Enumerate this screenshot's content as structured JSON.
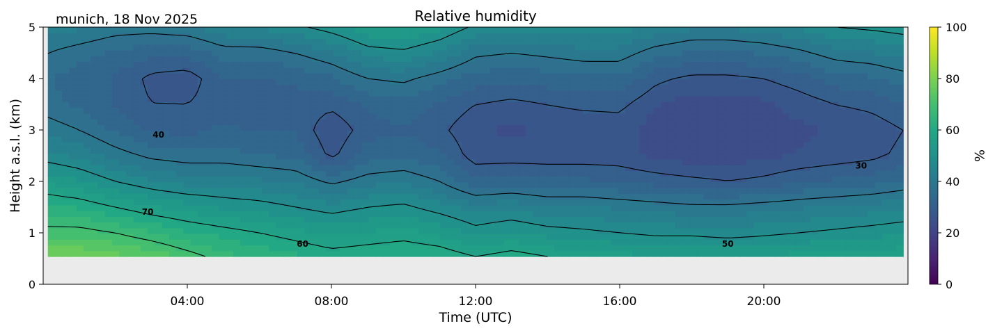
{
  "chart_data": {
    "type": "heatmap",
    "title": "Relative humidity",
    "subtitle": "munich, 18 Nov 2025",
    "xlabel": "Time (UTC)",
    "ylabel": "Height a.s.l. (km)",
    "xlim": [
      0,
      24
    ],
    "ylim": [
      0,
      5
    ],
    "x_ticks": [
      4,
      8,
      12,
      16,
      20
    ],
    "x_tick_labels": [
      "04:00",
      "08:00",
      "12:00",
      "16:00",
      "20:00"
    ],
    "y_ticks": [
      0,
      1,
      2,
      3,
      4,
      5
    ],
    "y_tick_labels": [
      "0",
      "1",
      "2",
      "3",
      "4",
      "5"
    ],
    "colorbar": {
      "label": "%",
      "range": [
        0,
        100
      ],
      "ticks": [
        0,
        20,
        40,
        60,
        80,
        100
      ],
      "tick_labels": [
        "0",
        "20",
        "40",
        "60",
        "80",
        "100"
      ],
      "colormap": "viridis"
    },
    "data_time_range": [
      0.13,
      23.87
    ],
    "data_height_range": [
      0.54,
      5
    ],
    "times": [
      0.13,
      1,
      2,
      3,
      4,
      5,
      6,
      7,
      8,
      9,
      10,
      11,
      12,
      13,
      14,
      15,
      16,
      17,
      18,
      19,
      20,
      21,
      22,
      23,
      23.87
    ],
    "heights": [
      0.54,
      1,
      1.5,
      2,
      2.5,
      3,
      3.5,
      4,
      4.5,
      5
    ],
    "values": [
      [
        80,
        72,
        64,
        56,
        48,
        42,
        38,
        37,
        40,
        45
      ],
      [
        80,
        72,
        63,
        54,
        46,
        40,
        36,
        35,
        38,
        44
      ],
      [
        78,
        70,
        60,
        50,
        42,
        36,
        33,
        33,
        36,
        42
      ],
      [
        76,
        67,
        57,
        47,
        39,
        33,
        30,
        29,
        34,
        42
      ],
      [
        72,
        64,
        55,
        45,
        38,
        32,
        30,
        28,
        34,
        43
      ],
      [
        68,
        62,
        53,
        45,
        38,
        34,
        32,
        33,
        38,
        46
      ],
      [
        66,
        60,
        52,
        44,
        37,
        33,
        32,
        33,
        38,
        47
      ],
      [
        64,
        58,
        50,
        43,
        36,
        33,
        32,
        34,
        40,
        49
      ],
      [
        62,
        56,
        48,
        39,
        29,
        27,
        31,
        36,
        43,
        52
      ],
      [
        63,
        57,
        50,
        42,
        35,
        32,
        34,
        40,
        48,
        56
      ],
      [
        64,
        58,
        51,
        43,
        36,
        33,
        35,
        41,
        49,
        57
      ],
      [
        63,
        56,
        48,
        40,
        34,
        31,
        33,
        38,
        46,
        54
      ],
      [
        60,
        52,
        45,
        34,
        28,
        27,
        30,
        35,
        41,
        49
      ],
      [
        62,
        54,
        46,
        35,
        28,
        26,
        29,
        34,
        40,
        48
      ],
      [
        60,
        52,
        44,
        34,
        28,
        27,
        30,
        35,
        41,
        48
      ],
      [
        58,
        51,
        44,
        34,
        28,
        27,
        31,
        36,
        42,
        49
      ],
      [
        58,
        50,
        43,
        33,
        28,
        28,
        31,
        36,
        42,
        48
      ],
      [
        57,
        49,
        42,
        32,
        26,
        25,
        27,
        31,
        38,
        46
      ],
      [
        57,
        49,
        41,
        31,
        25,
        24,
        25,
        29,
        36,
        44
      ],
      [
        57,
        48,
        41,
        30,
        25,
        24,
        25,
        29,
        36,
        44
      ],
      [
        57,
        49,
        42,
        31,
        26,
        25,
        26,
        30,
        37,
        45
      ],
      [
        58,
        50,
        43,
        33,
        27,
        26,
        28,
        32,
        39,
        47
      ],
      [
        58,
        51,
        44,
        34,
        28,
        27,
        30,
        35,
        42,
        50
      ],
      [
        58,
        52,
        45,
        35,
        29,
        28,
        31,
        36,
        43,
        51
      ],
      [
        59,
        53,
        46,
        37,
        31,
        30,
        33,
        38,
        45,
        52
      ]
    ],
    "contour_levels": [
      30,
      40,
      50,
      60,
      70
    ],
    "contour_labels": [
      {
        "text": "40",
        "x": 3.2,
        "y": 2.85
      },
      {
        "text": "70",
        "x": 2.9,
        "y": 1.35
      },
      {
        "text": "60",
        "x": 7.2,
        "y": 0.73
      },
      {
        "text": "50",
        "x": 19.0,
        "y": 0.73
      },
      {
        "text": "30",
        "x": 22.7,
        "y": 2.25
      }
    ]
  }
}
